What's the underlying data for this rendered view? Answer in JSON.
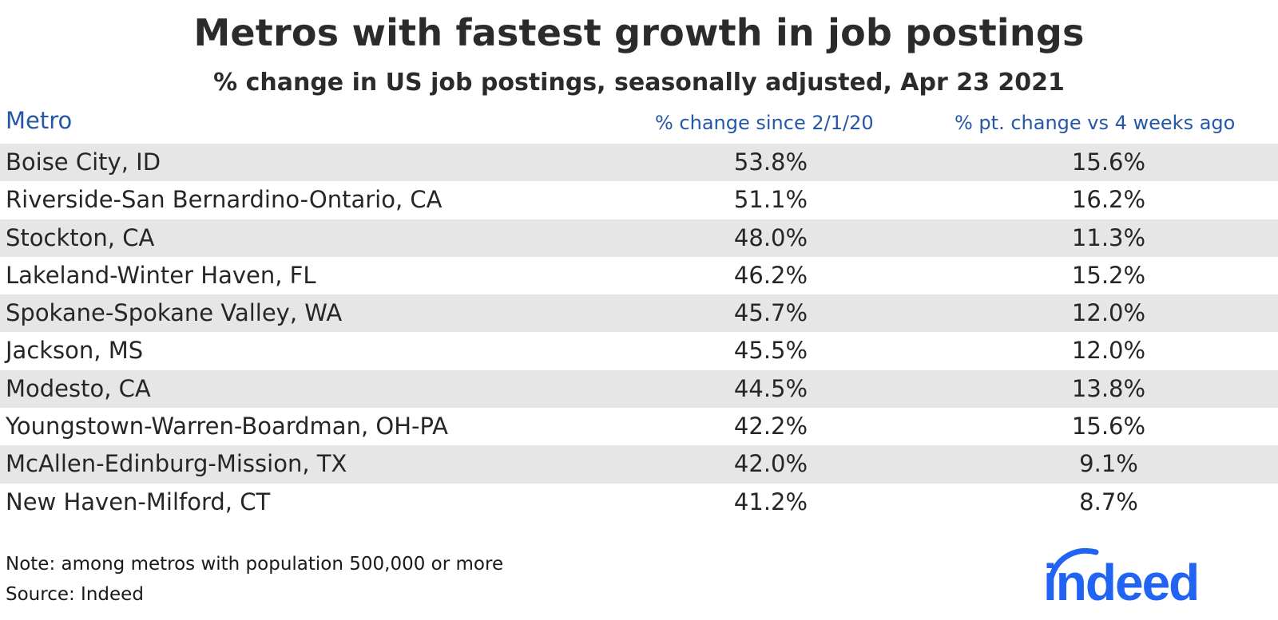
{
  "title": "Metros with fastest growth in job postings",
  "subtitle": "% change in US job postings, seasonally adjusted, Apr 23 2021",
  "chart_data": {
    "type": "table",
    "columns": [
      "Metro",
      "% change since 2/1/20",
      "% pt. change vs 4 weeks ago"
    ],
    "rows": [
      {
        "metro": "Boise City, ID",
        "v1": "53.8%",
        "v2": "15.6%"
      },
      {
        "metro": "Riverside-San Bernardino-Ontario, CA",
        "v1": "51.1%",
        "v2": "16.2%"
      },
      {
        "metro": "Stockton, CA",
        "v1": "48.0%",
        "v2": "11.3%"
      },
      {
        "metro": "Lakeland-Winter Haven, FL",
        "v1": "46.2%",
        "v2": "15.2%"
      },
      {
        "metro": "Spokane-Spokane Valley, WA",
        "v1": "45.7%",
        "v2": "12.0%"
      },
      {
        "metro": "Jackson, MS",
        "v1": "45.5%",
        "v2": "12.0%"
      },
      {
        "metro": "Modesto, CA",
        "v1": "44.5%",
        "v2": "13.8%"
      },
      {
        "metro": "Youngstown-Warren-Boardman, OH-PA",
        "v1": "42.2%",
        "v2": "15.6%"
      },
      {
        "metro": "McAllen-Edinburg-Mission, TX",
        "v1": "42.0%",
        "v2": "9.1%"
      },
      {
        "metro": "New Haven-Milford, CT",
        "v1": "41.2%",
        "v2": "8.7%"
      }
    ],
    "header_color": "#2557a7",
    "stripe_color": "#e6e6e6"
  },
  "note": "Note: among metros with population 500,000 or more",
  "source": "Source: Indeed",
  "logo": {
    "text": "indeed",
    "color": "#2164f3"
  }
}
